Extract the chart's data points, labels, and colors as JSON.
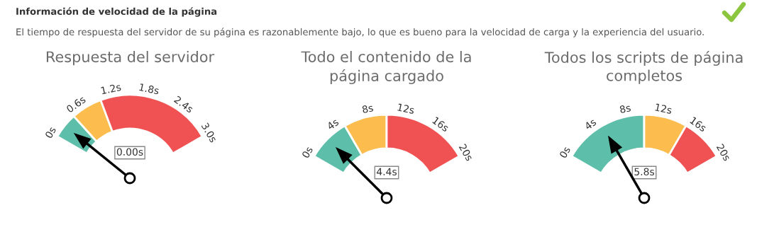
{
  "chart_data": [
    {
      "type": "other",
      "title": "Información de velocidad de la página",
      "subtitle": "El tiempo de respuesta del servidor de su página es razonablemente bajo, lo que es bueno para la velocidad de carga y la experiencia del usuario."
    },
    {
      "type": "donut",
      "title": "Respuesta del servidor",
      "categories": [
        null,
        null,
        null
      ],
      "values": [
        15,
        18,
        67
      ],
      "colors": [
        "#5dbea9",
        "#fdbd4e",
        "#f05152"
      ],
      "needle": null,
      "annotations": [
        "0s",
        "0.6s",
        "1.2s",
        "1.8s",
        "2.4s",
        "3.0s",
        {
          "text": "0.00s"
        }
      ]
    },
    {
      "type": "donut",
      "title": "Todo el contenido de la página cargado",
      "categories": [
        null,
        null,
        null
      ],
      "values": [
        25,
        25,
        50
      ],
      "colors": [
        "#5dbea9",
        "#fdbd4e",
        "#f05152"
      ],
      "needle": null,
      "annotations": [
        "0s",
        "4s",
        "8s",
        "12s",
        "16s",
        "20s",
        {
          "text": "4.4s"
        }
      ]
    },
    {
      "type": "donut",
      "title": "Todos los scripts de página completos",
      "categories": [
        null,
        null,
        null
      ],
      "values": [
        50,
        25,
        25
      ],
      "colors": [
        "#5dbea9",
        "#fdbd4e",
        "#f05152"
      ],
      "needle": null,
      "annotations": [
        "0s",
        "4s",
        "8s",
        "12s",
        "16s",
        "20s",
        {
          "text": "5.8s"
        }
      ]
    }
  ]
}
